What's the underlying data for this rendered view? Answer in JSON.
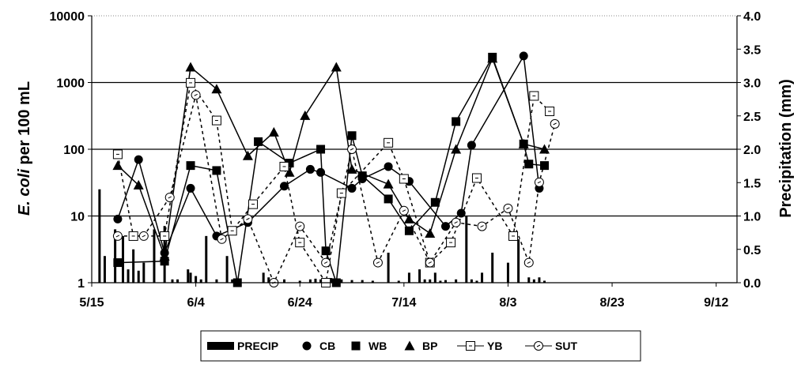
{
  "chart_data": {
    "type": "line",
    "title": "",
    "ylabel_italic": "E. coli",
    "ylabel_rest": " per 100 mL",
    "y2label": "Precipitation (mm)",
    "xlabel": "",
    "x_tick_labels": [
      "5/15",
      "6/4",
      "6/24",
      "7/14",
      "8/3",
      "8/23",
      "9/12"
    ],
    "x_tick_days": [
      0,
      20,
      40,
      60,
      80,
      100,
      120
    ],
    "xlim_days": [
      0,
      124
    ],
    "y_scale": "log",
    "ylim": [
      1,
      10000
    ],
    "y_tick_labels": [
      "1",
      "10",
      "100",
      "1000",
      "10000"
    ],
    "y2lim": [
      0,
      4
    ],
    "y2_tick_labels": [
      "0.0",
      "0.5",
      "1.0",
      "1.5",
      "2.0",
      "2.5",
      "3.0",
      "3.5",
      "4.0"
    ],
    "grid": "horizontal major lines at 10, 100, 1000",
    "legend_position": "bottom",
    "series": [
      {
        "name": "CB",
        "marker": "circle-filled",
        "line": "solid",
        "x": [
          5,
          9,
          14,
          19,
          24,
          30,
          37,
          42,
          44,
          50,
          52,
          57,
          61,
          68,
          71,
          73,
          83,
          86
        ],
        "y": [
          9,
          70,
          2.8,
          26,
          5,
          8,
          28,
          50,
          45,
          26,
          36,
          55,
          33,
          7,
          11,
          115,
          2500,
          26
        ]
      },
      {
        "name": "WB",
        "marker": "square-filled",
        "line": "solid",
        "x": [
          5,
          14,
          19,
          24,
          28,
          32,
          38,
          44,
          45,
          47,
          50,
          52,
          57,
          61,
          66,
          70,
          77,
          83,
          84,
          87
        ],
        "y": [
          2,
          2.1,
          57,
          48,
          1,
          130,
          62,
          100,
          3,
          1,
          160,
          40,
          18,
          6,
          16,
          260,
          2400,
          120,
          60,
          57
        ]
      },
      {
        "name": "BP",
        "marker": "triangle-filled",
        "line": "solid",
        "x": [
          5,
          9,
          14,
          19,
          24,
          30,
          35,
          38,
          41,
          47,
          50,
          57,
          61,
          65,
          70,
          77,
          83,
          87
        ],
        "y": [
          57,
          29,
          2.5,
          1700,
          800,
          80,
          180,
          45,
          320,
          1700,
          50,
          30,
          9,
          5.5,
          100,
          2300,
          120,
          100
        ]
      },
      {
        "name": "YB",
        "marker": "square-open",
        "line": "dashed",
        "x": [
          5,
          8,
          14,
          19,
          24,
          27,
          31,
          37,
          40,
          45,
          48,
          57,
          60,
          65,
          69,
          74,
          81,
          85,
          88
        ],
        "y": [
          84,
          5,
          5,
          990,
          270,
          6,
          15,
          55,
          4,
          1,
          22,
          125,
          36,
          2,
          4,
          37,
          5,
          630,
          370
        ]
      },
      {
        "name": "SUT",
        "marker": "circle-open",
        "line": "dashed",
        "x": [
          5,
          10,
          15,
          20,
          25,
          30,
          35,
          40,
          45,
          50,
          55,
          60,
          65,
          70,
          75,
          80,
          84,
          86,
          89
        ],
        "y": [
          5,
          5,
          19,
          650,
          4.5,
          9,
          1,
          7,
          2,
          100,
          2,
          12,
          2,
          8,
          7,
          13,
          2,
          32,
          240
        ]
      }
    ],
    "bar_series": {
      "name": "PRECIP",
      "axis": "secondary",
      "x": [
        1.5,
        2.5,
        4.5,
        6,
        7,
        8,
        9,
        10,
        12,
        14,
        15.5,
        16.5,
        18.5,
        19,
        20,
        21,
        22,
        24,
        26,
        27,
        28,
        33,
        34,
        37,
        40,
        42,
        43,
        44,
        46,
        48,
        50,
        52,
        54,
        57,
        59,
        61,
        63,
        64,
        65,
        66,
        67,
        68,
        70,
        72,
        73,
        74,
        75,
        77,
        80,
        82,
        84,
        85,
        86,
        87
      ],
      "values": [
        1.4,
        0.4,
        0.8,
        0.7,
        0.2,
        0.5,
        0.18,
        0.3,
        0.8,
        0.85,
        0.05,
        0.05,
        0.2,
        0.15,
        0.1,
        0.05,
        0.7,
        0.05,
        0.4,
        0.05,
        0.03,
        0.15,
        0.08,
        0.05,
        0.03,
        0.05,
        0.06,
        0.05,
        0.07,
        0.05,
        0.04,
        0.04,
        0.03,
        0.45,
        0.03,
        0.15,
        0.2,
        0.05,
        0.05,
        0.15,
        0.03,
        0.04,
        0.05,
        1.0,
        0.05,
        0.03,
        0.15,
        0.45,
        0.3,
        0.65,
        0.08,
        0.05,
        0.08,
        0.03
      ]
    }
  },
  "legend": {
    "items": [
      "PRECIP",
      "CB",
      "WB",
      "BP",
      "YB",
      "SUT"
    ]
  }
}
